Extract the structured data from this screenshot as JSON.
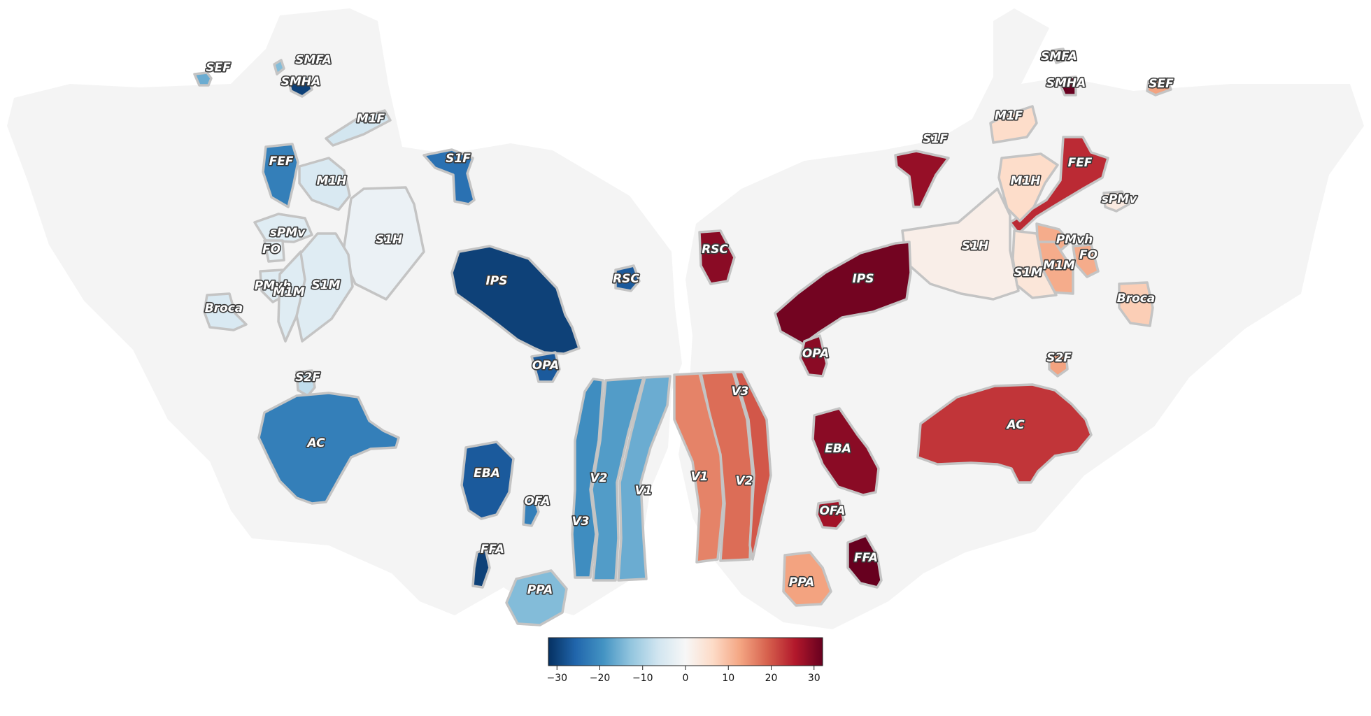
{
  "colors": {
    "page_background": "#ffffff",
    "cortex_surface": "#f4f4f4",
    "roi_outline": "#c4c4c4",
    "colormap": "RdBu_r",
    "colormap_stops": [
      "#053061",
      "#2166ac",
      "#4393c3",
      "#92c5de",
      "#d1e5f0",
      "#f7f7f7",
      "#fddbc7",
      "#f4a582",
      "#d6604d",
      "#b2182b",
      "#67001f"
    ]
  },
  "left_hemisphere": {
    "regions": [
      {
        "label": "SEF",
        "value": -16
      },
      {
        "label": "SMFA",
        "value": -14
      },
      {
        "label": "SMHA",
        "value": -30
      },
      {
        "label": "M1F",
        "value": -6
      },
      {
        "label": "FEF",
        "value": -22
      },
      {
        "label": "M1H",
        "value": -5
      },
      {
        "label": "S1F",
        "value": -24
      },
      {
        "label": "S1H",
        "value": -2
      },
      {
        "label": "sPMv",
        "value": -4
      },
      {
        "label": "FO",
        "value": -3
      },
      {
        "label": "PMvh",
        "value": -4
      },
      {
        "label": "M1M",
        "value": -4
      },
      {
        "label": "S1M",
        "value": -4
      },
      {
        "label": "Broca",
        "value": -5
      },
      {
        "label": "IPS",
        "value": -30
      },
      {
        "label": "RSC",
        "value": -27
      },
      {
        "label": "OPA",
        "value": -27
      },
      {
        "label": "S2F",
        "value": -8
      },
      {
        "label": "AC",
        "value": -22
      },
      {
        "label": "EBA",
        "value": -27
      },
      {
        "label": "OFA",
        "value": -22
      },
      {
        "label": "FFA",
        "value": -30
      },
      {
        "label": "PPA",
        "value": -14
      },
      {
        "label": "V1",
        "value": -16
      },
      {
        "label": "V2",
        "value": -18
      },
      {
        "label": "V3",
        "value": -20
      }
    ]
  },
  "right_hemisphere": {
    "regions": [
      {
        "label": "SMFA",
        "value": 4
      },
      {
        "label": "SMHA",
        "value": 32
      },
      {
        "label": "SEF",
        "value": 13
      },
      {
        "label": "M1F",
        "value": 6
      },
      {
        "label": "S1F",
        "value": 28
      },
      {
        "label": "FEF",
        "value": 24
      },
      {
        "label": "M1H",
        "value": 6
      },
      {
        "label": "sPMv",
        "value": 3
      },
      {
        "label": "S1H",
        "value": 2
      },
      {
        "label": "PMvh",
        "value": 12
      },
      {
        "label": "FO",
        "value": 12
      },
      {
        "label": "M1M",
        "value": 12
      },
      {
        "label": "S1M",
        "value": 4
      },
      {
        "label": "Broca",
        "value": 8
      },
      {
        "label": "IPS",
        "value": 31
      },
      {
        "label": "RSC",
        "value": 29
      },
      {
        "label": "OPA",
        "value": 29
      },
      {
        "label": "S2F",
        "value": 13
      },
      {
        "label": "AC",
        "value": 23
      },
      {
        "label": "EBA",
        "value": 29
      },
      {
        "label": "OFA",
        "value": 27
      },
      {
        "label": "FFA",
        "value": 32
      },
      {
        "label": "PPA",
        "value": 13
      },
      {
        "label": "V1",
        "value": 16
      },
      {
        "label": "V2",
        "value": 18
      },
      {
        "label": "V3",
        "value": 20
      }
    ]
  },
  "colorbar": {
    "min": -32,
    "max": 32,
    "ticks": [
      -30,
      -20,
      -10,
      0,
      10,
      20,
      30
    ],
    "tick_labels": [
      "−30",
      "−20",
      "−10",
      "0",
      "10",
      "20",
      "30"
    ]
  }
}
